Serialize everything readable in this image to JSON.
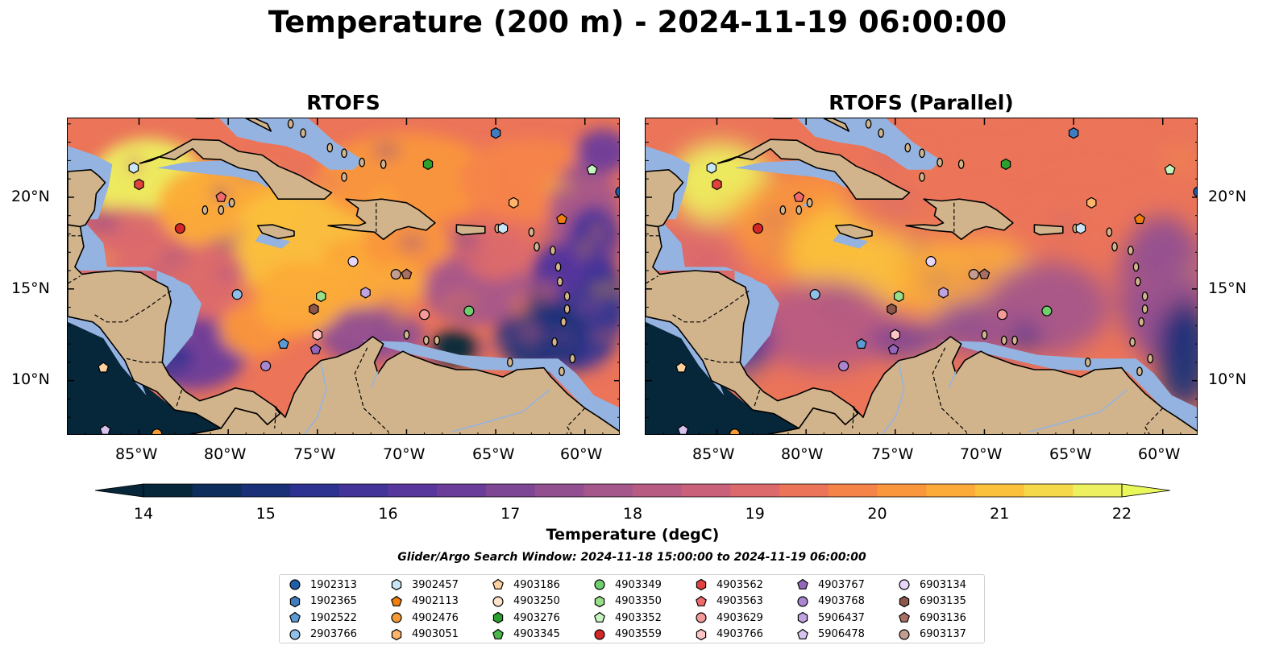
{
  "title": "Temperature (200 m) - 2024-11-19 06:00:00",
  "panels": [
    {
      "title": "RTOFS"
    },
    {
      "title": "RTOFS (Parallel)"
    }
  ],
  "lat_labels": [
    "20°N",
    "15°N",
    "10°N"
  ],
  "lon_labels": [
    "85°W",
    "80°W",
    "75°W",
    "70°W",
    "65°W",
    "60°W"
  ],
  "colorbar": {
    "label": "Temperature (degC)",
    "ticks": [
      "14",
      "15",
      "16",
      "17",
      "18",
      "19",
      "20",
      "21",
      "22"
    ],
    "min": 14,
    "max": 22,
    "step": 0.5,
    "colors": [
      "#06263a",
      "#0d2d5c",
      "#1a3178",
      "#2d3290",
      "#43349a",
      "#57379c",
      "#6b3d9b",
      "#7e4796",
      "#925090",
      "#a5568a",
      "#b85b82",
      "#ca617a",
      "#dc6a6c",
      "#eb7459",
      "#f58449",
      "#fa963c",
      "#fcab38",
      "#fbc13b",
      "#f6d84b",
      "#edf060"
    ],
    "under_color": "#06263a",
    "over_color": "#e9f75a"
  },
  "search_window": "Glider/Argo Search Window: 2024-11-18 15:00:00 to 2024-11-19 06:00:00",
  "map_colors": {
    "land": "#d2b48c",
    "shelf": "#95b3e0",
    "deep_cold": "#06263a"
  },
  "legend": [
    {
      "id": "1902313",
      "marker": "circle",
      "color": "#1f5fa8"
    },
    {
      "id": "1902365",
      "marker": "hexagon",
      "color": "#3f7cc0"
    },
    {
      "id": "1902522",
      "marker": "pentagon",
      "color": "#5a9bd5"
    },
    {
      "id": "2903766",
      "marker": "circle",
      "color": "#8fc0ea"
    },
    {
      "id": "3902457",
      "marker": "hexagon",
      "color": "#c8e6f8"
    },
    {
      "id": "4902113",
      "marker": "pentagon",
      "color": "#f07f10"
    },
    {
      "id": "4902476",
      "marker": "circle",
      "color": "#f59a35"
    },
    {
      "id": "4903051",
      "marker": "hexagon",
      "color": "#ffb46a"
    },
    {
      "id": "4903186",
      "marker": "pentagon",
      "color": "#ffd0a0"
    },
    {
      "id": "4903250",
      "marker": "circle",
      "color": "#ffe3c8"
    },
    {
      "id": "4903276",
      "marker": "hexagon",
      "color": "#2ca02c"
    },
    {
      "id": "4903345",
      "marker": "pentagon",
      "color": "#4cb84c"
    },
    {
      "id": "4903349",
      "marker": "circle",
      "color": "#6fcf6f"
    },
    {
      "id": "4903350",
      "marker": "hexagon",
      "color": "#98df8a"
    },
    {
      "id": "4903352",
      "marker": "pentagon",
      "color": "#c7f5c0"
    },
    {
      "id": "4903559",
      "marker": "circle",
      "color": "#d62728"
    },
    {
      "id": "4903562",
      "marker": "hexagon",
      "color": "#e34040"
    },
    {
      "id": "4903563",
      "marker": "pentagon",
      "color": "#ef6a6a"
    },
    {
      "id": "4903629",
      "marker": "circle",
      "color": "#f59a9a"
    },
    {
      "id": "4903766",
      "marker": "hexagon",
      "color": "#ffc5c5"
    },
    {
      "id": "4903767",
      "marker": "pentagon",
      "color": "#9467bd"
    },
    {
      "id": "4903768",
      "marker": "circle",
      "color": "#a986cf"
    },
    {
      "id": "5906437",
      "marker": "hexagon",
      "color": "#c0a3e0"
    },
    {
      "id": "5906478",
      "marker": "pentagon",
      "color": "#d8c2f0"
    },
    {
      "id": "6903134",
      "marker": "circle",
      "color": "#e8d5fa"
    },
    {
      "id": "6903135",
      "marker": "hexagon",
      "color": "#8c564b"
    },
    {
      "id": "6903136",
      "marker": "pentagon",
      "color": "#a86f62"
    },
    {
      "id": "6903137",
      "marker": "circle",
      "color": "#c49c90"
    }
  ],
  "floats": [
    {
      "id": "3902457",
      "lon": -85.3,
      "lat": 21.6
    },
    {
      "id": "4903562",
      "lon": -85.0,
      "lat": 20.7
    },
    {
      "id": "4903563",
      "lon": -80.4,
      "lat": 20.0
    },
    {
      "id": "4903559",
      "lon": -82.7,
      "lat": 18.3
    },
    {
      "id": "1902365",
      "lon": -65.0,
      "lat": 23.5
    },
    {
      "id": "4903276",
      "lon": -68.8,
      "lat": 21.8
    },
    {
      "id": "4903352",
      "lon": -59.6,
      "lat": 21.5
    },
    {
      "id": "1902313",
      "lon": -58.0,
      "lat": 20.3
    },
    {
      "id": "4903051",
      "lon": -64.0,
      "lat": 19.7
    },
    {
      "id": "4902113",
      "lon": -61.3,
      "lat": 18.8
    },
    {
      "id": "3902457",
      "lon": -64.6,
      "lat": 18.3
    },
    {
      "id": "6903134",
      "lon": -73.0,
      "lat": 16.5
    },
    {
      "id": "6903137",
      "lon": -70.6,
      "lat": 15.8
    },
    {
      "id": "6903136",
      "lon": -70.0,
      "lat": 15.8
    },
    {
      "id": "2903766",
      "lon": -79.5,
      "lat": 14.7
    },
    {
      "id": "4903350",
      "lon": -74.8,
      "lat": 14.6
    },
    {
      "id": "5906437",
      "lon": -72.3,
      "lat": 14.8
    },
    {
      "id": "6903135",
      "lon": -75.2,
      "lat": 13.9
    },
    {
      "id": "4903629",
      "lon": -69.0,
      "lat": 13.6
    },
    {
      "id": "4903349",
      "lon": -66.5,
      "lat": 13.8
    },
    {
      "id": "4903766",
      "lon": -75.0,
      "lat": 12.5
    },
    {
      "id": "1902522",
      "lon": -76.9,
      "lat": 12.0
    },
    {
      "id": "4903767",
      "lon": -75.1,
      "lat": 11.7
    },
    {
      "id": "4903768",
      "lon": -77.9,
      "lat": 10.8
    },
    {
      "id": "4903186",
      "lon": -87.0,
      "lat": 10.7
    },
    {
      "id": "5906478",
      "lon": -86.9,
      "lat": 7.3
    },
    {
      "id": "4902476",
      "lon": -84.0,
      "lat": 7.1
    }
  ]
}
